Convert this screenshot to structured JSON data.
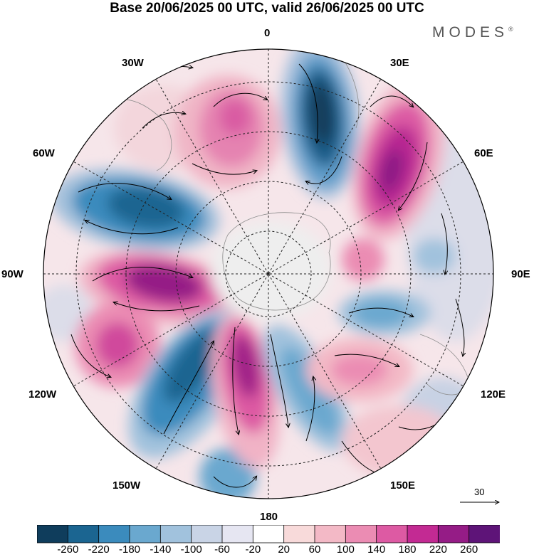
{
  "title": "Base 20/06/2025 00 UTC, valid 26/06/2025 00 UTC",
  "brand": "MODES",
  "brand_mark": "®",
  "longitude_labels": {
    "top": "0",
    "top_right": "30E",
    "upper_right": "60E",
    "right": "90E",
    "lower_right": "120E",
    "bottom_right": "150E",
    "bottom": "180",
    "bottom_left": "150W",
    "lower_left": "120W",
    "left": "90W",
    "upper_left": "60W",
    "top_left": "30W"
  },
  "reference_vector": {
    "label": "30"
  },
  "colorbar": {
    "colors": [
      "#0f3d5c",
      "#1b6591",
      "#3b8bbd",
      "#6aa8cf",
      "#a1c2dd",
      "#c9d4e6",
      "#e6e6f2",
      "#ffffff",
      "#f8dada",
      "#f3b9c6",
      "#eb8cb3",
      "#dd5aa3",
      "#c32a93",
      "#951c86",
      "#5e1478"
    ],
    "tick_labels": [
      "-260",
      "-220",
      "-180",
      "-140",
      "-100",
      "-60",
      "-20",
      "20",
      "60",
      "100",
      "140",
      "180",
      "220",
      "260"
    ]
  },
  "anomaly_centers": [
    {
      "sign": "negative",
      "label": "strong low near 15E"
    },
    {
      "sign": "positive",
      "label": "strong high near 45E"
    },
    {
      "sign": "negative",
      "label": "low near 75W"
    },
    {
      "sign": "positive",
      "label": "high near 100W"
    },
    {
      "sign": "negative",
      "label": "low near 140W"
    },
    {
      "sign": "positive",
      "label": "high near 165W"
    },
    {
      "sign": "negative",
      "label": "low near 160E"
    },
    {
      "sign": "positive",
      "label": "high near 135E"
    },
    {
      "sign": "positive",
      "label": "high near 20W"
    }
  ]
}
